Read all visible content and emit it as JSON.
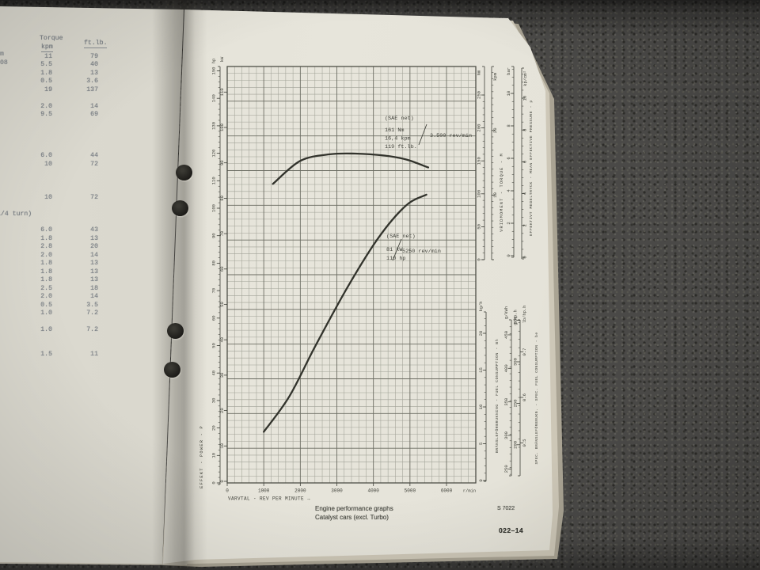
{
  "colors": {
    "carpet": "#4a4947",
    "page_right": "#e6e4da",
    "page_left": "#d6d4ca",
    "graph_ink": "#3f4039",
    "grid_minor": "#a0a196",
    "grid_major": "#6b6c62",
    "curve_ink": "#32332c",
    "table_ink": "#7e8388"
  },
  "left_page": {
    "table": {
      "title": "Torque",
      "col1_unit": "kpm",
      "col2_unit": "ft.lb.",
      "edge_fragments": [
        "m",
        "08"
      ],
      "rows": [
        {
          "kpm": "11",
          "ftlb": "79"
        },
        {
          "kpm": "5.5",
          "ftlb": "40"
        },
        {
          "kpm": "1.8",
          "ftlb": "13"
        },
        {
          "kpm": "0.5",
          "ftlb": "3.6"
        },
        {
          "kpm": "19",
          "ftlb": "137"
        },
        {
          "kpm": "2.0",
          "ftlb": "14",
          "blank_before": 1
        },
        {
          "kpm": "9.5",
          "ftlb": "69"
        },
        {
          "kpm": "6.0",
          "ftlb": "44",
          "blank_before": 4
        },
        {
          "kpm": "10",
          "ftlb": "72"
        },
        {
          "kpm": "10",
          "ftlb": "72",
          "blank_before": 3
        },
        {
          "note": "1/4 turn)",
          "blank_before": 1
        },
        {
          "kpm": "6.0",
          "ftlb": "43",
          "blank_before": 1
        },
        {
          "kpm": "1.8",
          "ftlb": "13"
        },
        {
          "kpm": "2.8",
          "ftlb": "20"
        },
        {
          "kpm": "2.0",
          "ftlb": "14"
        },
        {
          "kpm": "1.8",
          "ftlb": "13"
        },
        {
          "kpm": "1.8",
          "ftlb": "13"
        },
        {
          "kpm": "1.8",
          "ftlb": "13"
        },
        {
          "kpm": "2.5",
          "ftlb": "18"
        },
        {
          "kpm": "2.0",
          "ftlb": "14"
        },
        {
          "kpm": "0.5",
          "ftlb": "3.5"
        },
        {
          "kpm": "1.0",
          "ftlb": "7.2"
        },
        {
          "kpm": "1.0",
          "ftlb": "7.2",
          "blank_before": 1
        },
        {
          "kpm": "1.5",
          "ftlb": "11",
          "blank_before": 2
        }
      ]
    }
  },
  "right_page": {
    "caption_line1": "Engine performance graphs",
    "caption_line2": "Catalyst cars (excl. Turbo)",
    "figure_code": "S 7022",
    "page_number": "022–14"
  },
  "chart_data": {
    "type": "line",
    "title": "Engine performance graphs — Catalyst cars (excl. Turbo)",
    "grid": "on",
    "x_axis": {
      "label": "VARVTAL - REV PER MINUTE →",
      "unit": "r/min",
      "tick_labels": [
        "0",
        "1000",
        "2000",
        "3000",
        "4000",
        "5000",
        "6000"
      ],
      "range": [
        0,
        6800
      ],
      "major_step": 1000,
      "minor_step": 200
    },
    "annotations": [
      {
        "lines": [
          "(SAE net)",
          "161 Nm",
          "16,4 kpm",
          "119 ft.lb."
        ],
        "at": "3.500 rev/min"
      },
      {
        "lines": [
          "(SAE net)",
          "81 kW",
          "110 hp"
        ],
        "at": "5250 rev/min"
      }
    ],
    "series": [
      {
        "name": "torque",
        "condition": "SAE net",
        "unit": "Nm",
        "points": [
          [
            1250,
            115
          ],
          [
            2000,
            150
          ],
          [
            2800,
            160
          ],
          [
            3500,
            161
          ],
          [
            4300,
            158
          ],
          [
            4900,
            152
          ],
          [
            5500,
            140
          ]
        ]
      },
      {
        "name": "power",
        "condition": "SAE net",
        "unit": "kW",
        "points": [
          [
            1000,
            14
          ],
          [
            1700,
            24
          ],
          [
            2400,
            38
          ],
          [
            3300,
            55
          ],
          [
            4150,
            69
          ],
          [
            4900,
            78
          ],
          [
            5450,
            81
          ]
        ]
      }
    ],
    "scales": {
      "power_hp": {
        "unit": "hp",
        "labels": [
          0,
          10,
          20,
          30,
          40,
          50,
          60,
          70,
          80,
          90,
          100,
          110,
          120,
          130,
          140,
          150
        ]
      },
      "power_kw": {
        "unit": "kW",
        "labels": [
          0,
          10,
          20,
          30,
          40,
          50,
          60,
          70,
          80,
          90,
          100,
          110
        ]
      },
      "torque_nm": {
        "unit": "Nm",
        "labels": [
          0,
          50,
          100,
          150,
          200,
          250
        ]
      },
      "torque_kpm": {
        "unit": "kpm",
        "labels": [
          10,
          20
        ]
      },
      "mep_bar": {
        "unit": "bar",
        "labels": [
          0,
          2,
          4,
          6,
          8,
          10
        ]
      },
      "mep_kpcm2": {
        "unit": "kp/cm²",
        "labels": [
          0,
          2,
          4,
          6,
          8,
          10
        ]
      },
      "fuel_kgh": {
        "unit": "kg/h",
        "labels": [
          0,
          5,
          10,
          15,
          20
        ]
      },
      "sfc_gkwh": {
        "unit": "g/kWh",
        "labels": [
          250,
          300,
          350,
          400,
          450
        ]
      },
      "sfc_ghph": {
        "unit": "g/hp.h",
        "labels": [
          200,
          250,
          300,
          350
        ]
      },
      "sfc_lbhph": {
        "unit": "lb/hp.h",
        "labels": [
          0.5,
          0.6,
          0.7
        ]
      }
    },
    "axis_titles": {
      "power": "EFFEKT - POWER - P",
      "torque": "VRIDMOMENT - TORQUE - M",
      "mep": "EFFEKTIVT MEDELTRYCK - MEAN EFFECTIVE PRESSURE - p",
      "fuel": "BRÄNSLEFÖRBRUKNING - FUEL CONSUMPTION - Bh",
      "sfc": "SPEC. BRÄNSLEFÖRBRUKN. - SPEC. FUEL CONSUMPTION - be"
    }
  }
}
